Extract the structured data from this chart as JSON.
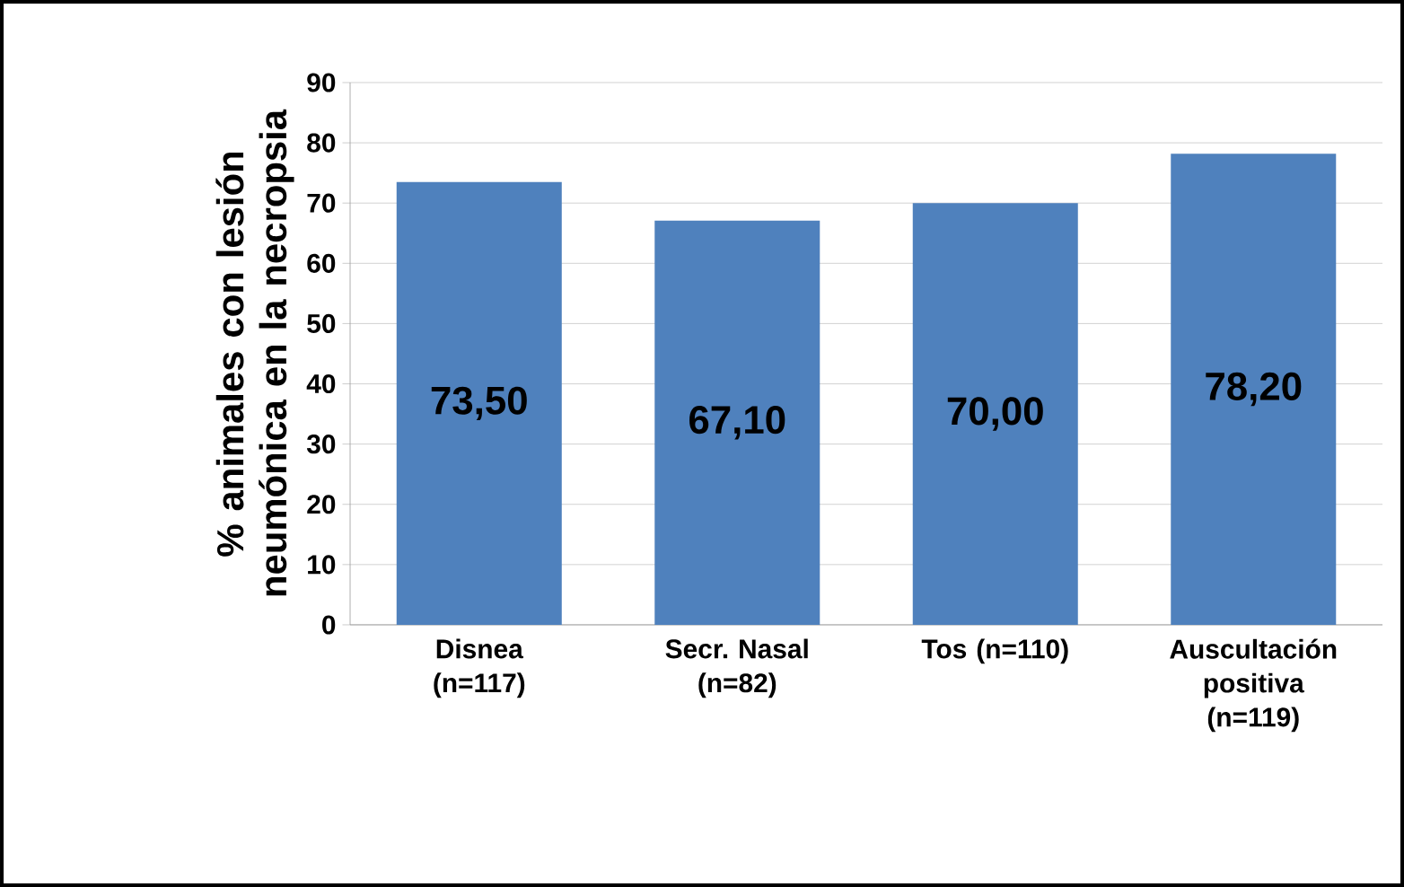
{
  "chart_data": {
    "type": "bar",
    "ylabel": "% animales con lesión neumónica en la necropsia",
    "categories": [
      "Disnea (n=117)",
      "Secr. Nasal (n=82)",
      "Tos (n=110)",
      "Auscultación positiva (n=119)"
    ],
    "values": [
      73.5,
      67.1,
      70.0,
      78.2
    ],
    "value_labels": [
      "73,50",
      "67,10",
      "70,00",
      "78,20"
    ],
    "color": "#4f81bd",
    "ylim": [
      0,
      90
    ],
    "yticks": [
      0,
      10,
      20,
      30,
      40,
      50,
      60,
      70,
      80,
      90
    ],
    "grid": "y"
  }
}
